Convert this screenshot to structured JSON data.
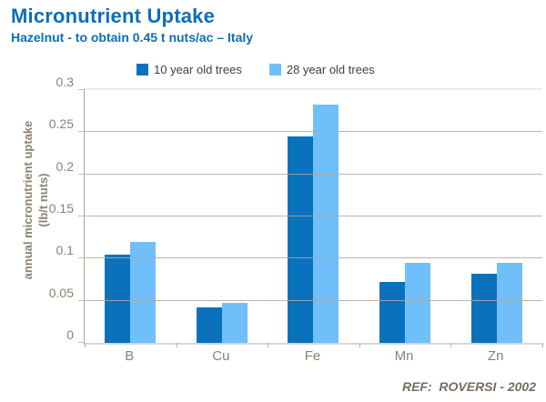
{
  "header": {
    "title": "Micronutrient Uptake",
    "subtitle": "Hazelnut - to obtain 0.45 t nuts/ac – Italy"
  },
  "chart_data": {
    "type": "bar",
    "title": "Micronutrient Uptake",
    "subtitle": "Hazelnut - to obtain 0.45 t nuts/ac – Italy",
    "categories": [
      "B",
      "Cu",
      "Fe",
      "Mn",
      "Zn"
    ],
    "series": [
      {
        "name": "10 year old trees",
        "color": "#0a72bd",
        "values": [
          0.105,
          0.042,
          0.245,
          0.072,
          0.082
        ]
      },
      {
        "name": "28 year old trees",
        "color": "#70bffb",
        "values": [
          0.12,
          0.047,
          0.283,
          0.095,
          0.095
        ]
      }
    ],
    "xlabel": "",
    "ylabel_line1": "annual micronutrient uptake",
    "ylabel_line2": "(lb/t nuts)",
    "ylim": [
      0,
      0.3
    ],
    "yticks": [
      "0",
      "0.05",
      "0.1",
      "0.15",
      "0.2",
      "0.25",
      "0.3"
    ],
    "grid": true,
    "legend_position": "top"
  },
  "footer": {
    "ref": "REF:  ROVERSI - 2002"
  },
  "colors": {
    "title": "#0d6eb6",
    "series_dark_blue": "#0a72bd",
    "series_light_blue": "#70bffb",
    "axis_text": "#8c8175",
    "grid": "#b2a79a",
    "legend_text": "#3f3f3f",
    "ref_text": "#786d60"
  }
}
